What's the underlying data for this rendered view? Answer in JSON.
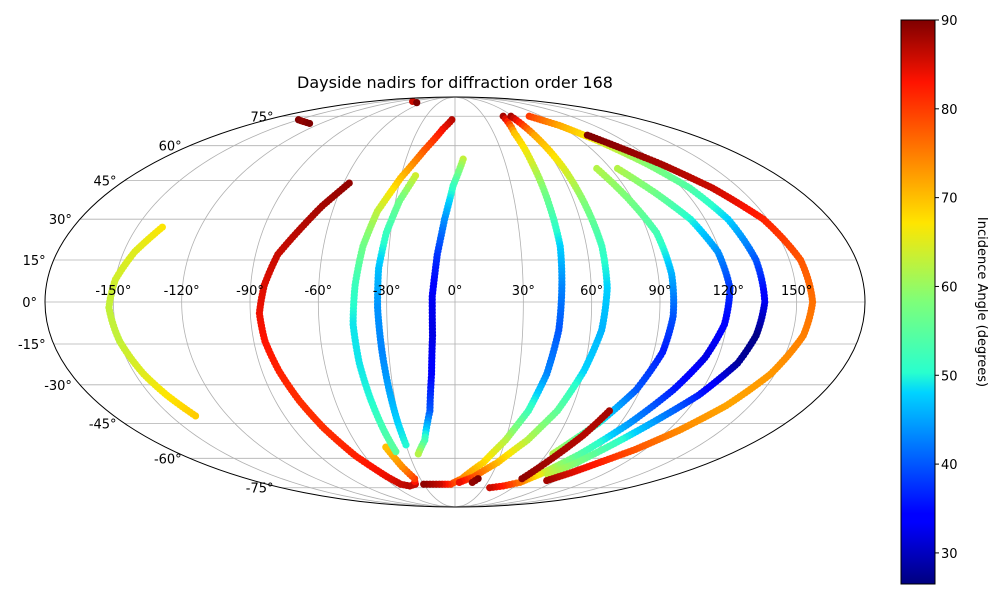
{
  "chart_data": {
    "type": "scatter",
    "projection": "mollweide",
    "title": "Dayside nadirs for diffraction order 168",
    "xlabel": "",
    "ylabel": "",
    "lon_ticks": [
      -150,
      -120,
      -90,
      -60,
      -30,
      0,
      30,
      60,
      90,
      120,
      150
    ],
    "lon_tick_labels": [
      "-150°",
      "-120°",
      "-90°",
      "-60°",
      "-30°",
      "0°",
      "30°",
      "60°",
      "90°",
      "120°",
      "150°"
    ],
    "lat_ticks": [
      -75,
      -60,
      -45,
      -30,
      -15,
      0,
      15,
      30,
      45,
      60,
      75
    ],
    "lat_tick_labels": [
      "-75°",
      "-60°",
      "-45°",
      "-30°",
      "-15°",
      "0°",
      "15°",
      "30°",
      "45°",
      "60°",
      "75°"
    ],
    "grid": true,
    "colorbar": {
      "label": "Incidence Angle (degrees)",
      "colormap": "jet",
      "range": [
        26.5,
        90
      ],
      "ticks": [
        30,
        40,
        50,
        60,
        70,
        80,
        90
      ],
      "tick_labels": [
        "30",
        "40",
        "50",
        "60",
        "70",
        "80",
        "90"
      ]
    },
    "series": [
      {
        "points": [
          [
            -138,
            27,
            67
          ],
          [
            -145,
            18,
            65
          ],
          [
            -150,
            8,
            64
          ],
          [
            -152,
            -2,
            63
          ],
          [
            -150,
            -14,
            63
          ],
          [
            -146,
            -26,
            65
          ],
          [
            -142,
            -34,
            67
          ],
          [
            -137,
            -42,
            69
          ]
        ]
      },
      {
        "points": [
          [
            -57,
            44,
            89
          ],
          [
            -66,
            35,
            88
          ],
          [
            -73,
            26,
            87
          ],
          [
            -80,
            17,
            86
          ],
          [
            -84,
            6,
            85
          ],
          [
            -86,
            -4,
            84
          ],
          [
            -85,
            -14,
            83
          ],
          [
            -82,
            -25,
            82
          ],
          [
            -78,
            -36,
            81
          ],
          [
            -73,
            -47,
            81
          ],
          [
            -66,
            -59,
            82
          ],
          [
            -57,
            -69,
            84
          ],
          [
            -52,
            -73,
            86
          ],
          [
            -45,
            -74,
            87
          ],
          [
            -38,
            -73,
            86
          ],
          [
            -35,
            -70,
            80
          ],
          [
            -39,
            -64,
            74
          ],
          [
            -43,
            -55,
            70
          ]
        ]
      },
      {
        "points": [
          [
            -3,
            73,
            87
          ],
          [
            -10,
            68,
            84
          ],
          [
            -20,
            58,
            78
          ],
          [
            -30,
            46,
            70
          ],
          [
            -38,
            33,
            63
          ],
          [
            -42,
            20,
            57
          ],
          [
            -44,
            6,
            52
          ],
          [
            -45,
            -8,
            49
          ],
          [
            -44,
            -22,
            49
          ],
          [
            -42,
            -36,
            50
          ],
          [
            -40,
            -48,
            53
          ],
          [
            -38,
            -57,
            55
          ]
        ]
      },
      {
        "points": [
          [
            -22,
            47,
            64
          ],
          [
            -28,
            37,
            57
          ],
          [
            -32,
            25,
            52
          ],
          [
            -34,
            12,
            47
          ],
          [
            -34,
            -2,
            44
          ],
          [
            -33,
            -18,
            43
          ],
          [
            -32,
            -32,
            45
          ],
          [
            -31,
            -45,
            48
          ],
          [
            -30,
            -54,
            50
          ]
        ]
      },
      {
        "points": [
          [
            5,
            54,
            63
          ],
          [
            -1,
            43,
            52
          ],
          [
            -5,
            30,
            44
          ],
          [
            -8,
            17,
            38
          ],
          [
            -10,
            2,
            33
          ],
          [
            -10,
            -12,
            32
          ],
          [
            -11,
            -26,
            34
          ],
          [
            -13,
            -40,
            40
          ],
          [
            -18,
            -52,
            52
          ],
          [
            -24,
            -58,
            62
          ]
        ]
      },
      {
        "points": [
          [
            50,
            75,
            88
          ],
          [
            46,
            66,
            70
          ],
          [
            46,
            52,
            64
          ],
          [
            47,
            35,
            55
          ],
          [
            48,
            20,
            48
          ],
          [
            47,
            5,
            43
          ],
          [
            46,
            -10,
            40
          ],
          [
            43,
            -26,
            43
          ],
          [
            38,
            -40,
            52
          ],
          [
            30,
            -52,
            62
          ],
          [
            20,
            -62,
            68
          ],
          [
            6,
            -70,
            74
          ],
          [
            -4,
            -73,
            80
          ],
          [
            -15,
            -73,
            86
          ],
          [
            -30,
            -73,
            89
          ]
        ]
      },
      {
        "points": [
          [
            58,
            75,
            88
          ],
          [
            60,
            65,
            72
          ],
          [
            63,
            50,
            65
          ],
          [
            65,
            35,
            58
          ],
          [
            67,
            20,
            52
          ],
          [
            67,
            5,
            48
          ],
          [
            65,
            -10,
            46
          ],
          [
            60,
            -25,
            48
          ],
          [
            53,
            -40,
            55
          ],
          [
            43,
            -52,
            62
          ],
          [
            30,
            -62,
            70
          ],
          [
            16,
            -69,
            78
          ],
          [
            4,
            -72,
            84
          ]
        ]
      },
      {
        "points": [
          [
            82,
            50,
            62
          ],
          [
            88,
            38,
            58
          ],
          [
            94,
            25,
            53
          ],
          [
            96,
            10,
            46
          ],
          [
            96,
            -5,
            40
          ],
          [
            94,
            -18,
            36
          ],
          [
            88,
            -32,
            40
          ],
          [
            78,
            -45,
            50
          ],
          [
            64,
            -58,
            62
          ]
        ]
      },
      {
        "points": [
          [
            94,
            50,
            62
          ],
          [
            104,
            40,
            57
          ],
          [
            113,
            30,
            50
          ],
          [
            119,
            18,
            44
          ],
          [
            121,
            5,
            38
          ],
          [
            119,
            -8,
            34
          ],
          [
            114,
            -20,
            32
          ],
          [
            106,
            -32,
            36
          ],
          [
            95,
            -45,
            44
          ],
          [
            82,
            -58,
            54
          ],
          [
            70,
            -67,
            64
          ],
          [
            60,
            -72,
            75
          ],
          [
            48,
            -74,
            82
          ],
          [
            36,
            -75,
            86
          ]
        ]
      },
      {
        "points": [
          [
            77,
            75,
            80
          ],
          [
            90,
            70,
            72
          ],
          [
            102,
            62,
            65
          ],
          [
            114,
            52,
            59
          ],
          [
            124,
            42,
            54
          ],
          [
            131,
            30,
            48
          ],
          [
            135,
            15,
            40
          ],
          [
            136,
            0,
            33
          ],
          [
            134,
            -12,
            27
          ],
          [
            130,
            -22,
            28
          ],
          [
            120,
            -34,
            36
          ],
          [
            108,
            -44,
            44
          ],
          [
            96,
            -54,
            52
          ],
          [
            86,
            -62,
            58
          ],
          [
            76,
            -68,
            63
          ]
        ]
      },
      {
        "points": [
          [
            100,
            65,
            90
          ],
          [
            122,
            52,
            88
          ],
          [
            136,
            42,
            86
          ],
          [
            148,
            30,
            82
          ],
          [
            155,
            15,
            78
          ],
          [
            157,
            0,
            76
          ],
          [
            155,
            -12,
            75
          ],
          [
            148,
            -26,
            73
          ],
          [
            138,
            -38,
            72
          ],
          [
            126,
            -48,
            74
          ],
          [
            114,
            -56,
            78
          ],
          [
            102,
            -62,
            82
          ],
          [
            92,
            -67,
            85
          ],
          [
            82,
            -71,
            88
          ]
        ]
      },
      {
        "points": [
          [
            80,
            -40,
            88
          ],
          [
            74,
            -50,
            87
          ],
          [
            66,
            -60,
            88
          ],
          [
            58,
            -70,
            89
          ]
        ]
      },
      {
        "points": [
          [
            20,
            -70,
            90
          ],
          [
            16,
            -72,
            89
          ]
        ]
      },
      {
        "points": [
          [
            -150,
            73,
            90
          ],
          [
            -140,
            72,
            89
          ],
          [
            -130,
            71,
            90
          ]
        ]
      },
      {
        "points": [
          [
            -90,
            85,
            86
          ],
          [
            -72,
            84,
            90
          ]
        ]
      }
    ]
  }
}
